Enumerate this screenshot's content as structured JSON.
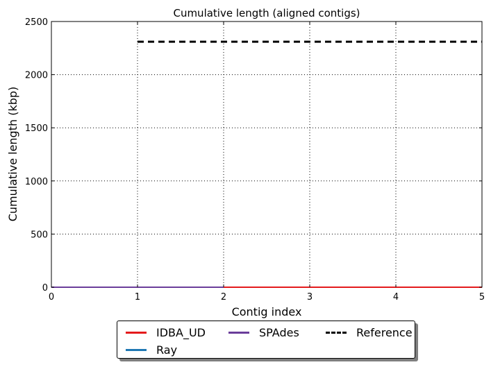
{
  "chart_data": {
    "type": "line",
    "title": "Cumulative length (aligned contigs)",
    "xlabel": "Contig index",
    "ylabel": "Cumulative length (kbp)",
    "xlim": [
      0,
      5
    ],
    "ylim": [
      0,
      2500
    ],
    "xticks": [
      "0",
      "1",
      "2",
      "3",
      "4",
      "5"
    ],
    "yticks": [
      "0",
      "500",
      "1000",
      "1500",
      "2000",
      "2500"
    ],
    "grid": true,
    "legend_position": "below",
    "series": [
      {
        "name": "IDBA_UD",
        "color": "#e41a1c",
        "style": "solid",
        "x": [
          0,
          5
        ],
        "y": [
          0,
          0
        ]
      },
      {
        "name": "Ray",
        "color": "#1f78b4",
        "style": "solid",
        "x": [
          0,
          2
        ],
        "y": [
          0,
          0
        ]
      },
      {
        "name": "SPAdes",
        "color": "#6a3d9a",
        "style": "solid",
        "x": [
          0,
          2
        ],
        "y": [
          0,
          0
        ]
      },
      {
        "name": "Reference",
        "color": "#000000",
        "style": "dashed",
        "x": [
          1,
          5
        ],
        "y": [
          2310,
          2310
        ]
      }
    ]
  }
}
